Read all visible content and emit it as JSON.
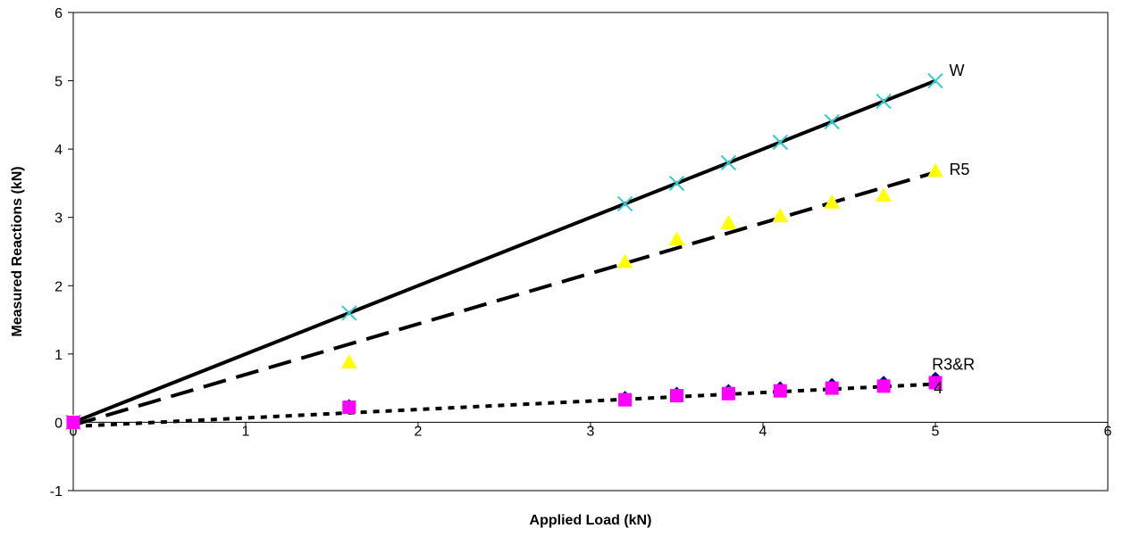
{
  "chart_data": {
    "type": "scatter",
    "xlabel": "Applied Load (kN)",
    "ylabel": "Measured Reactions (kN)",
    "xlim": [
      0,
      6
    ],
    "ylim": [
      -1,
      6
    ],
    "x_ticks": [
      "0",
      "1",
      "2",
      "3",
      "4",
      "5",
      "6"
    ],
    "y_ticks": [
      "-1",
      "0",
      "1",
      "2",
      "3",
      "4",
      "5",
      "6"
    ],
    "grid": false,
    "legend": "none",
    "series": [
      {
        "name": "W",
        "marker": "x-cross",
        "marker_color": "#33CCCC",
        "x": [
          0,
          1.6,
          3.2,
          3.5,
          3.8,
          4.1,
          4.4,
          4.7,
          5.0
        ],
        "y": [
          0,
          1.6,
          3.2,
          3.5,
          3.8,
          4.1,
          4.4,
          4.7,
          5.0
        ]
      },
      {
        "name": "R5",
        "marker": "triangle",
        "marker_color": "#FFFF00",
        "x": [
          0,
          1.6,
          3.2,
          3.5,
          3.8,
          4.1,
          4.4,
          4.7,
          5.0
        ],
        "y": [
          0,
          0.88,
          2.35,
          2.68,
          2.92,
          3.02,
          3.22,
          3.32,
          3.68
        ]
      },
      {
        "name": "R4",
        "marker": "diamond",
        "marker_color": "#000080",
        "x": [
          0,
          1.6,
          3.2,
          3.5,
          3.8,
          4.1,
          4.4,
          4.7,
          5.0
        ],
        "y": [
          0,
          0.24,
          0.36,
          0.42,
          0.46,
          0.5,
          0.55,
          0.58,
          0.64
        ]
      },
      {
        "name": "R3",
        "marker": "square",
        "marker_color": "#FF00FF",
        "x": [
          0,
          1.6,
          3.2,
          3.5,
          3.8,
          4.1,
          4.4,
          4.7,
          5.0
        ],
        "y": [
          0,
          0.22,
          0.33,
          0.39,
          0.42,
          0.46,
          0.5,
          0.53,
          0.58
        ]
      }
    ],
    "trendlines": [
      {
        "series": "W",
        "style": "solid",
        "color": "#000000",
        "x": [
          0,
          5.0
        ],
        "y": [
          0,
          5.0
        ]
      },
      {
        "series": "R5",
        "style": "dashed",
        "color": "#000000",
        "x": [
          0,
          5.0
        ],
        "y": [
          -0.04,
          3.66
        ]
      },
      {
        "series": "R3&R4",
        "style": "dotted",
        "color": "#000000",
        "x": [
          0,
          5.0
        ],
        "y": [
          -0.06,
          0.56
        ]
      }
    ],
    "annotations": [
      {
        "text": "W",
        "x": 5.08,
        "y": 5.15
      },
      {
        "text": "R5",
        "x": 5.08,
        "y": 3.7
      },
      {
        "text": "R3&R",
        "x": 4.98,
        "y": 0.85
      },
      {
        "text": "4",
        "x": 4.99,
        "y": 0.5
      }
    ]
  }
}
